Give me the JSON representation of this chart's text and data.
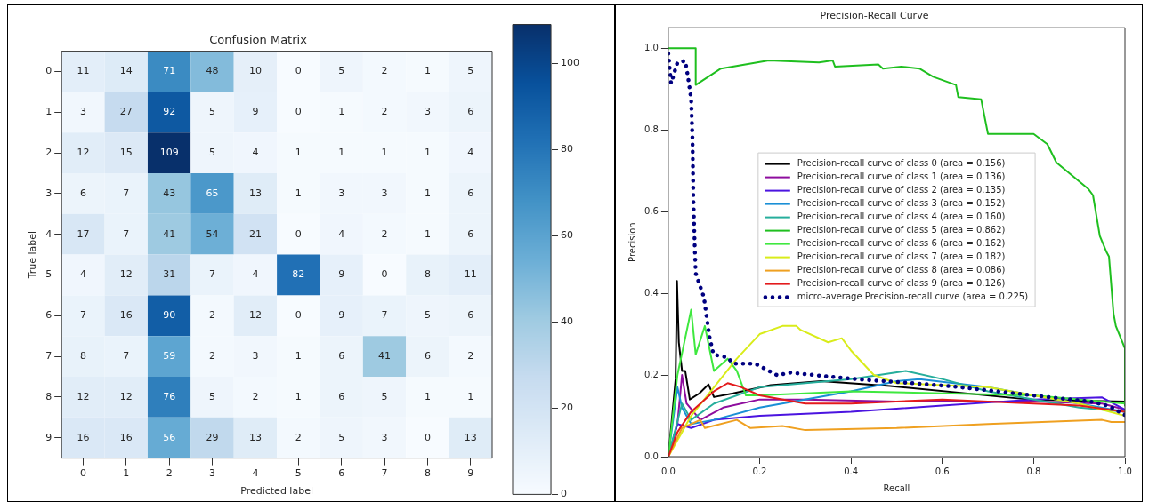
{
  "chart_data": [
    {
      "type": "heatmap",
      "title": "Confusion Matrix",
      "xlabel": "Predicted label",
      "ylabel": "True label",
      "categories": [
        "0",
        "1",
        "2",
        "3",
        "4",
        "5",
        "6",
        "7",
        "8",
        "9"
      ],
      "y_categories": [
        "0",
        "1",
        "2",
        "3",
        "4",
        "5",
        "6",
        "7",
        "8",
        "9"
      ],
      "cells": [
        [
          11,
          14,
          71,
          48,
          10,
          0,
          5,
          2,
          1,
          5
        ],
        [
          3,
          27,
          92,
          5,
          9,
          0,
          1,
          2,
          3,
          6
        ],
        [
          12,
          15,
          109,
          5,
          4,
          1,
          1,
          1,
          1,
          4
        ],
        [
          6,
          7,
          43,
          65,
          13,
          1,
          3,
          3,
          1,
          6
        ],
        [
          17,
          7,
          41,
          54,
          21,
          0,
          4,
          2,
          1,
          6
        ],
        [
          4,
          12,
          31,
          7,
          4,
          82,
          9,
          0,
          8,
          11
        ],
        [
          7,
          16,
          90,
          2,
          12,
          0,
          9,
          7,
          5,
          6
        ],
        [
          8,
          7,
          59,
          2,
          3,
          1,
          6,
          41,
          6,
          2
        ],
        [
          12,
          12,
          76,
          5,
          2,
          1,
          6,
          5,
          1,
          1
        ],
        [
          16,
          16,
          56,
          29,
          13,
          2,
          5,
          3,
          0,
          13
        ]
      ],
      "data_labels": true,
      "clim": [
        0,
        109
      ],
      "cticks": [
        0,
        20,
        40,
        60,
        80,
        100
      ]
    },
    {
      "type": "line",
      "title": "Precision-Recall Curve",
      "xlabel": "Recall",
      "ylabel": "Precision",
      "xlim": [
        0,
        1
      ],
      "ylim": [
        0,
        1.05
      ],
      "xticks": [
        {
          "value": 0,
          "label": "0.0"
        },
        {
          "value": 0.2,
          "label": "0.2"
        },
        {
          "value": 0.4,
          "label": "0.4"
        },
        {
          "value": 0.6,
          "label": "0.6"
        },
        {
          "value": 0.8,
          "label": "0.8"
        },
        {
          "value": 1,
          "label": "1.0"
        }
      ],
      "yticks": [
        {
          "value": 0,
          "label": "0.0"
        },
        {
          "value": 0.2,
          "label": "0.2"
        },
        {
          "value": 0.4,
          "label": "0.4"
        },
        {
          "value": 0.6,
          "label": "0.6"
        },
        {
          "value": 0.8,
          "label": "0.8"
        },
        {
          "value": 1,
          "label": "1.0"
        }
      ],
      "legend": "center",
      "grid": false,
      "series": [
        {
          "name": "Precision-recall curve of class 0 (area = 0.156)",
          "color": "#000000",
          "x": [
            0,
            0.016,
            0.019,
            0.023,
            0.03,
            0.037,
            0.047,
            0.068,
            0.088,
            0.1,
            0.142,
            0.224,
            0.335,
            0.486,
            0.79,
            1.0
          ],
          "values": [
            0,
            0.19,
            0.43,
            0.28,
            0.21,
            0.21,
            0.14,
            0.155,
            0.177,
            0.146,
            0.155,
            0.175,
            0.185,
            0.173,
            0.14,
            0.135
          ]
        },
        {
          "name": "Precision-recall curve of class 1 (area = 0.136)",
          "color": "#8e0d9e",
          "x": [
            0,
            0.02,
            0.03,
            0.04,
            0.07,
            0.12,
            0.2,
            0.3,
            0.5,
            0.8,
            0.95,
            1.0
          ],
          "values": [
            0,
            0.08,
            0.2,
            0.13,
            0.09,
            0.12,
            0.14,
            0.14,
            0.135,
            0.135,
            0.13,
            0.115
          ]
        },
        {
          "name": "Precision-recall curve of class 2 (area = 0.135)",
          "color": "#4b14e0",
          "x": [
            0,
            0.02,
            0.05,
            0.1,
            0.2,
            0.4,
            0.6,
            0.8,
            0.95,
            1.0
          ],
          "values": [
            0,
            0.08,
            0.07,
            0.09,
            0.1,
            0.11,
            0.125,
            0.14,
            0.145,
            0.115
          ]
        },
        {
          "name": "Precision-recall curve of class 3 (area = 0.152)",
          "color": "#1a8fd6",
          "x": [
            0,
            0.02,
            0.03,
            0.05,
            0.1,
            0.2,
            0.4,
            0.5,
            0.55,
            0.7,
            0.9,
            1.0
          ],
          "values": [
            0,
            0.17,
            0.12,
            0.08,
            0.09,
            0.12,
            0.16,
            0.185,
            0.19,
            0.17,
            0.13,
            0.11
          ]
        },
        {
          "name": "Precision-recall curve of class 4 (area = 0.160)",
          "color": "#26ae9c",
          "x": [
            0,
            0.03,
            0.05,
            0.1,
            0.2,
            0.4,
            0.52,
            0.6,
            0.7,
            0.9,
            1.0
          ],
          "values": [
            0,
            0.13,
            0.09,
            0.13,
            0.17,
            0.19,
            0.21,
            0.19,
            0.16,
            0.12,
            0.11
          ]
        },
        {
          "name": "Precision-recall curve of class 5 (area = 0.862)",
          "color": "#1fbf1f",
          "x": [
            0,
            0.06,
            0.06,
            0.115,
            0.22,
            0.33,
            0.36,
            0.365,
            0.46,
            0.47,
            0.51,
            0.55,
            0.58,
            0.63,
            0.635,
            0.685,
            0.7,
            0.8,
            0.83,
            0.85,
            0.92,
            0.93,
            0.945,
            0.96,
            0.965,
            0.975,
            0.98,
            1.0,
            1.0
          ],
          "values": [
            1,
            1,
            0.91,
            0.95,
            0.97,
            0.965,
            0.97,
            0.955,
            0.96,
            0.95,
            0.955,
            0.95,
            0.93,
            0.91,
            0.88,
            0.875,
            0.79,
            0.79,
            0.765,
            0.72,
            0.655,
            0.64,
            0.54,
            0.5,
            0.49,
            0.35,
            0.32,
            0.265,
            0.125
          ]
        },
        {
          "name": "Precision-recall curve of class 6 (area = 0.162)",
          "color": "#3fe83f",
          "x": [
            0,
            0.02,
            0.05,
            0.06,
            0.08,
            0.1,
            0.13,
            0.15,
            0.17,
            0.2,
            0.4,
            0.6,
            0.8,
            1.0
          ],
          "values": [
            0,
            0.2,
            0.36,
            0.25,
            0.32,
            0.21,
            0.24,
            0.21,
            0.15,
            0.15,
            0.16,
            0.155,
            0.15,
            0.13
          ]
        },
        {
          "name": "Precision-recall curve of class 7 (area = 0.182)",
          "color": "#d9ec1a",
          "x": [
            0,
            0.05,
            0.1,
            0.15,
            0.2,
            0.25,
            0.28,
            0.29,
            0.35,
            0.38,
            0.4,
            0.45,
            0.5,
            0.7,
            0.9,
            1.0
          ],
          "values": [
            0,
            0.1,
            0.17,
            0.24,
            0.3,
            0.32,
            0.32,
            0.31,
            0.28,
            0.29,
            0.26,
            0.2,
            0.18,
            0.17,
            0.13,
            0.1
          ]
        },
        {
          "name": "Precision-recall curve of class 8 (area = 0.086)",
          "color": "#efa020",
          "x": [
            0,
            0.03,
            0.07,
            0.08,
            0.15,
            0.18,
            0.25,
            0.3,
            0.5,
            0.7,
            0.95,
            0.97,
            1.0
          ],
          "values": [
            0,
            0.07,
            0.09,
            0.07,
            0.09,
            0.07,
            0.075,
            0.065,
            0.07,
            0.08,
            0.09,
            0.085,
            0.085
          ]
        },
        {
          "name": "Precision-recall curve of class 9 (area = 0.126)",
          "color": "#e31a1c",
          "x": [
            0,
            0.02,
            0.05,
            0.1,
            0.13,
            0.16,
            0.2,
            0.3,
            0.4,
            0.6,
            0.8,
            0.9,
            1.0
          ],
          "values": [
            0,
            0.06,
            0.11,
            0.16,
            0.18,
            0.17,
            0.15,
            0.13,
            0.13,
            0.14,
            0.13,
            0.125,
            0.11
          ]
        },
        {
          "name": "micro-average Precision-recall curve (area = 0.225)",
          "color": "#000080",
          "line_style": "dotted",
          "x": [
            0,
            0.006,
            0.02,
            0.037,
            0.043,
            0.05,
            0.053,
            0.055,
            0.058,
            0.06,
            0.078,
            0.09,
            0.099,
            0.13,
            0.142,
            0.19,
            0.239,
            0.265,
            0.362,
            0.43,
            0.486,
            0.623,
            0.76,
            0.83,
            0.924,
            0.965,
            1.0
          ],
          "values": [
            0.987,
            0.914,
            0.965,
            0.969,
            0.93,
            0.876,
            0.774,
            0.626,
            0.51,
            0.449,
            0.39,
            0.294,
            0.25,
            0.243,
            0.228,
            0.228,
            0.199,
            0.206,
            0.195,
            0.188,
            0.184,
            0.172,
            0.155,
            0.146,
            0.135,
            0.124,
            0.102
          ]
        }
      ]
    }
  ]
}
